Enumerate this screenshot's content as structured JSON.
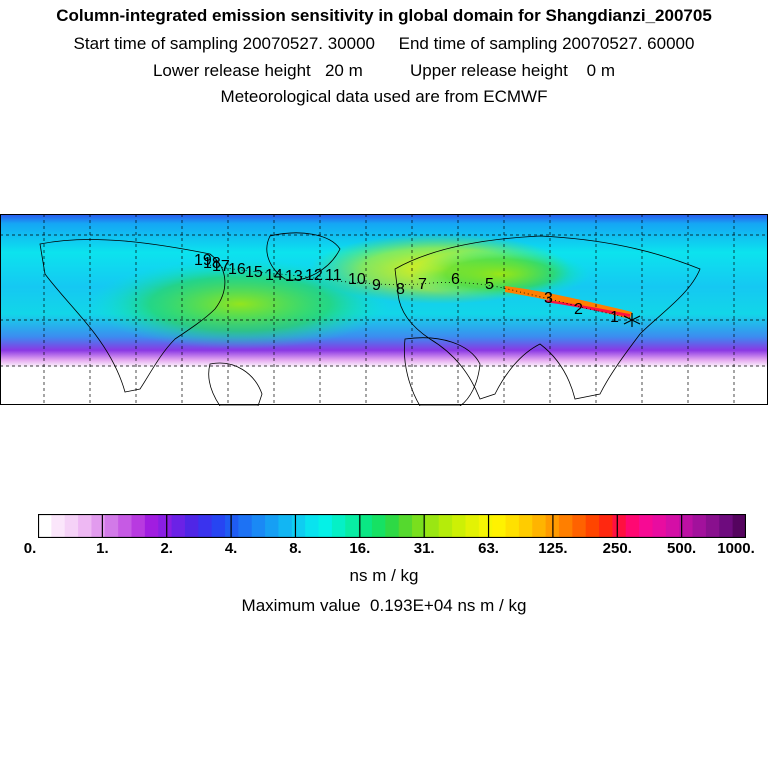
{
  "header": {
    "title": "Column-integrated emission sensitivity in global domain for Shangdianzi_200705",
    "sampling": "Start time of sampling 20070527. 30000     End time of sampling 20070527. 60000",
    "release": "Lower release height   20 m          Upper release height    0 m",
    "meteo": "Meteorological data used are from ECMWF"
  },
  "map": {
    "trajectory_labels": [
      "1",
      "2",
      "3",
      "5",
      "6",
      "7",
      "8",
      "9",
      "10",
      "11",
      "12",
      "13",
      "14",
      "15",
      "16",
      "17",
      "18",
      "19"
    ],
    "receptor_marker": "star"
  },
  "colorbar": {
    "tick_labels": [
      "0.",
      "1.",
      "2.",
      "4.",
      "8.",
      "16.",
      "31.",
      "63.",
      "125.",
      "250.",
      "500.",
      "1000."
    ],
    "colors": [
      "#ffffff",
      "#fbe6fb",
      "#f5d2f7",
      "#eeb8f3",
      "#e29bee",
      "#d27ae8",
      "#c65ae4",
      "#b83ae0",
      "#a11de0",
      "#8a1ee3",
      "#6b22e6",
      "#4f26e6",
      "#3a33ee",
      "#2745f2",
      "#1f5cf3",
      "#1d72f4",
      "#1a89f5",
      "#169ff4",
      "#12b6f3",
      "#0fcdf1",
      "#09e3ef",
      "#05f1e7",
      "#05f0c6",
      "#08eda4",
      "#0ae784",
      "#16e163",
      "#2ed945",
      "#55d92e",
      "#79df1e",
      "#9ae613",
      "#b5ec0a",
      "#cdf005",
      "#e3f204",
      "#f5f503",
      "#fff200",
      "#ffe000",
      "#ffcc00",
      "#ffb400",
      "#ff9a00",
      "#ff7f00",
      "#ff6200",
      "#ff4500",
      "#ff2810",
      "#ff1040",
      "#ff0872",
      "#f70a94",
      "#e80ca0",
      "#d40fa6",
      "#bc10a4",
      "#a2119c",
      "#89108e",
      "#6e0b7e",
      "#55045f"
    ],
    "units": "ns m / kg",
    "maximum_text": "Maximum value  0.193E+04 ns m / kg"
  }
}
